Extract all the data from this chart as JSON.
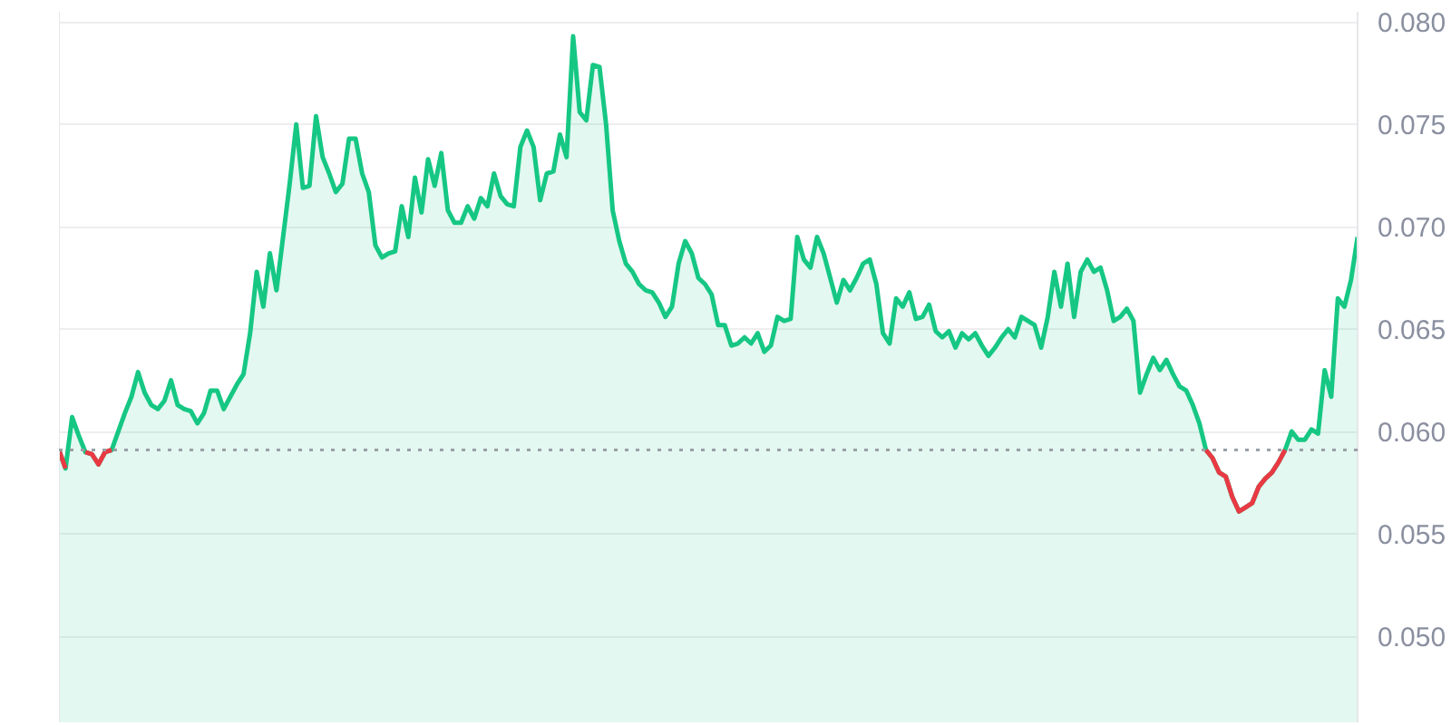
{
  "chart_data": {
    "type": "area",
    "categories": [
      null,
      null,
      null,
      null,
      null,
      null,
      null,
      null,
      null,
      null,
      null,
      null,
      null,
      null,
      null,
      null,
      null,
      null,
      null,
      null,
      null,
      null,
      null,
      null,
      null,
      null,
      null,
      null,
      null,
      null,
      null,
      null,
      null,
      null,
      null,
      null,
      null,
      null,
      null,
      null,
      null,
      null,
      null,
      null,
      null,
      null,
      null,
      null,
      null,
      null,
      null,
      null,
      null,
      null,
      null,
      null,
      null,
      null,
      null,
      null,
      null,
      null,
      null,
      null,
      null,
      null,
      null,
      null,
      null,
      null,
      null,
      null,
      null,
      null,
      null,
      null,
      null,
      null,
      null,
      null,
      null,
      null,
      null,
      null,
      null,
      null,
      null,
      null,
      null,
      null,
      null,
      null,
      null,
      null,
      null,
      null,
      null,
      null,
      null,
      null,
      null,
      null,
      null,
      null,
      null,
      null,
      null,
      null,
      null,
      null,
      null,
      null,
      null,
      null,
      null,
      null,
      null,
      null,
      null,
      null,
      null,
      null,
      null,
      null,
      null,
      null,
      null,
      null,
      null,
      null,
      null,
      null,
      null,
      null,
      null,
      null,
      null,
      null,
      null,
      null,
      null,
      null,
      null,
      null,
      null,
      null,
      null,
      null,
      null,
      null,
      null,
      null,
      null,
      null,
      null,
      null,
      null,
      null,
      null,
      null,
      null,
      null,
      null,
      null,
      null,
      null,
      null,
      null,
      null,
      null,
      null,
      null,
      null,
      null,
      null,
      null,
      null,
      null,
      null,
      null,
      null,
      null,
      null,
      null,
      null,
      null,
      null,
      null,
      null,
      null,
      null,
      null,
      null,
      null,
      null,
      null,
      null,
      null
    ],
    "series": [
      {
        "color": "#16c784",
        "values": [
          0.0591,
          0.0582,
          0.0607,
          0.0598,
          0.059,
          0.0589,
          0.0584,
          0.059,
          0.0591,
          0.06,
          0.0609,
          0.0617,
          0.0629,
          0.0619,
          0.0613,
          0.0611,
          0.0615,
          0.0625,
          0.0613,
          0.0611,
          0.061,
          0.0604,
          0.0609,
          0.062,
          0.062,
          0.0611,
          0.0617,
          0.0623,
          0.0628,
          0.0648,
          0.0678,
          0.0661,
          0.0687,
          0.0669,
          0.0695,
          0.0721,
          0.075,
          0.0719,
          0.072,
          0.0754,
          0.0734,
          0.0726,
          0.0717,
          0.0721,
          0.0743,
          0.0743,
          0.0726,
          0.0717,
          0.0691,
          0.0685,
          0.0687,
          0.0688,
          0.071,
          0.0695,
          0.0724,
          0.0707,
          0.0733,
          0.072,
          0.0736,
          0.0708,
          0.0702,
          0.0702,
          0.071,
          0.0704,
          0.0714,
          0.071,
          0.0726,
          0.0715,
          0.0711,
          0.071,
          0.0739,
          0.0747,
          0.0739,
          0.0713,
          0.0726,
          0.0727,
          0.0745,
          0.0734,
          0.0793,
          0.0756,
          0.0752,
          0.0779,
          0.0778,
          0.075,
          0.0708,
          0.0693,
          0.0682,
          0.0678,
          0.0672,
          0.0669,
          0.0668,
          0.0663,
          0.0656,
          0.0661,
          0.0682,
          0.0693,
          0.0687,
          0.0675,
          0.0672,
          0.0667,
          0.0652,
          0.0652,
          0.0642,
          0.0643,
          0.0646,
          0.0643,
          0.0648,
          0.0639,
          0.0642,
          0.0656,
          0.0654,
          0.0655,
          0.0695,
          0.0684,
          0.068,
          0.0695,
          0.0687,
          0.0675,
          0.0663,
          0.0674,
          0.0669,
          0.0675,
          0.0682,
          0.0684,
          0.0672,
          0.0648,
          0.0643,
          0.0665,
          0.0661,
          0.0668,
          0.0655,
          0.0656,
          0.0662,
          0.0649,
          0.0646,
          0.0649,
          0.0641,
          0.0648,
          0.0645,
          0.0648,
          0.0642,
          0.0637,
          0.0641,
          0.0646,
          0.065,
          0.0646,
          0.0656,
          0.0654,
          0.0652,
          0.0641,
          0.0656,
          0.0678,
          0.0661,
          0.0682,
          0.0656,
          0.0678,
          0.0684,
          0.0678,
          0.068,
          0.0669,
          0.0654,
          0.0656,
          0.066,
          0.0654,
          0.0619,
          0.0628,
          0.0636,
          0.063,
          0.0635,
          0.0628,
          0.0622,
          0.062,
          0.0613,
          0.0604,
          0.0591,
          0.0587,
          0.058,
          0.0578,
          0.0568,
          0.0561,
          0.0563,
          0.0565,
          0.0573,
          0.0577,
          0.058,
          0.0585,
          0.0591,
          0.06,
          0.0596,
          0.0596,
          0.0601,
          0.0599,
          0.063,
          0.0617,
          0.0665,
          0.0661,
          0.0674,
          0.0695
        ]
      },
      {
        "type": "line",
        "color": "#ea3943",
        "values": [
          0.0591,
          0.0582,
          null,
          null,
          0.059,
          0.0589,
          0.0584,
          0.059,
          0.0591,
          null,
          null,
          null,
          null,
          null,
          null,
          null,
          null,
          null,
          null,
          null,
          null,
          null,
          null,
          null,
          null,
          null,
          null,
          null,
          null,
          null,
          null,
          null,
          null,
          null,
          null,
          null,
          null,
          null,
          null,
          null,
          null,
          null,
          null,
          null,
          null,
          null,
          null,
          null,
          null,
          null,
          null,
          null,
          null,
          null,
          null,
          null,
          null,
          null,
          null,
          null,
          null,
          null,
          null,
          null,
          null,
          null,
          null,
          null,
          null,
          null,
          null,
          null,
          null,
          null,
          null,
          null,
          null,
          null,
          null,
          null,
          null,
          null,
          null,
          null,
          null,
          null,
          null,
          null,
          null,
          null,
          null,
          null,
          null,
          null,
          null,
          null,
          null,
          null,
          null,
          null,
          null,
          null,
          null,
          null,
          null,
          null,
          null,
          null,
          null,
          null,
          null,
          null,
          null,
          null,
          null,
          null,
          null,
          null,
          null,
          null,
          null,
          null,
          null,
          null,
          null,
          null,
          null,
          null,
          null,
          null,
          null,
          null,
          null,
          null,
          null,
          null,
          null,
          null,
          null,
          null,
          null,
          null,
          null,
          null,
          null,
          null,
          null,
          null,
          null,
          null,
          null,
          null,
          null,
          null,
          null,
          null,
          null,
          null,
          null,
          null,
          null,
          null,
          null,
          null,
          null,
          null,
          null,
          null,
          null,
          null,
          null,
          null,
          null,
          null,
          0.0591,
          0.0587,
          0.058,
          0.0578,
          0.0568,
          0.0561,
          0.0563,
          0.0565,
          0.0573,
          0.0577,
          0.058,
          0.0585,
          0.0591,
          null,
          null,
          null,
          null,
          null,
          null,
          null,
          null,
          null,
          null,
          null
        ]
      }
    ],
    "ylim": [
      0.0458,
      0.0805
    ],
    "yticks": [
      {
        "value": 0.05,
        "label": "0.050"
      },
      {
        "value": 0.055,
        "label": "0.055"
      },
      {
        "value": 0.06,
        "label": "0.060"
      },
      {
        "value": 0.065,
        "label": "0.065"
      },
      {
        "value": 0.07,
        "label": "0.070"
      },
      {
        "value": 0.075,
        "label": "0.075"
      },
      {
        "value": 0.08,
        "label": "0.080"
      }
    ],
    "ref_lines": [
      {
        "axis": "y",
        "value": 0.0591,
        "color": "#9aa0a6",
        "line_style": "dotted"
      }
    ],
    "grid": "y",
    "tick_labels": "y"
  }
}
